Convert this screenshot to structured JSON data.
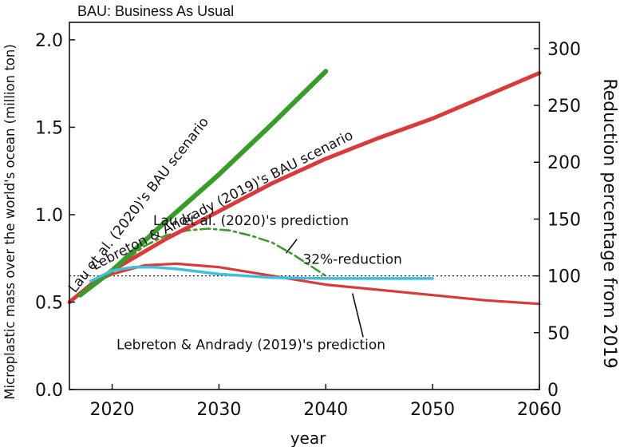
{
  "chart_data": {
    "type": "line",
    "note_text": "BAU: Business As Usual",
    "xlabel": "year",
    "ylabel": "Microplastic mass over the world's ocean (million ton)",
    "y2label": "Reduction percentage from 2019",
    "xlim": [
      2016,
      2060
    ],
    "ylim": [
      0,
      2.1
    ],
    "y2lim": [
      0,
      323.08
    ],
    "xticks": [
      2020,
      2030,
      2040,
      2050,
      2060
    ],
    "yticks": [
      0.0,
      0.5,
      1.0,
      1.5,
      2.0
    ],
    "y2ticks": [
      0,
      50,
      100,
      150,
      200,
      250,
      300
    ],
    "ytick_labels": [
      "0.0",
      "0.5",
      "1.0",
      "1.5",
      "2.0"
    ],
    "reference_line": {
      "y": 0.65,
      "label": "32%-reduction"
    },
    "series": [
      {
        "name": "Lau et al. (2020)'s BAU scenario",
        "color": "#3a9a2a",
        "x": [
          2017,
          2020,
          2025,
          2030,
          2035,
          2040
        ],
        "y": [
          0.54,
          0.68,
          0.96,
          1.23,
          1.52,
          1.82
        ]
      },
      {
        "name": "Lebreton & Andrady (2019)'s BAU scenario",
        "color": "#d93a3a",
        "x": [
          2016,
          2018,
          2020,
          2025,
          2030,
          2035,
          2040,
          2045,
          2050,
          2055,
          2060
        ],
        "y": [
          0.5,
          0.6,
          0.68,
          0.86,
          1.02,
          1.18,
          1.32,
          1.44,
          1.55,
          1.68,
          1.81
        ]
      },
      {
        "name": "Lau et al. (2020)'s prediction",
        "color": "#3a9a2a",
        "dash": "dashdot",
        "x": [
          2020,
          2023,
          2025,
          2027,
          2029,
          2031,
          2033,
          2035,
          2037,
          2040
        ],
        "y": [
          0.68,
          0.82,
          0.88,
          0.91,
          0.92,
          0.91,
          0.88,
          0.84,
          0.77,
          0.65
        ]
      },
      {
        "name": "Lebreton & Andrady (2019)'s prediction",
        "color": "#d93a3a",
        "x": [
          2016,
          2018,
          2020,
          2023,
          2026,
          2030,
          2035,
          2040,
          2045,
          2050,
          2055,
          2060
        ],
        "y": [
          0.5,
          0.6,
          0.66,
          0.71,
          0.72,
          0.7,
          0.65,
          0.6,
          0.57,
          0.54,
          0.51,
          0.49
        ]
      },
      {
        "name": "",
        "color": "#3fbfdc",
        "x": [
          2018,
          2020,
          2022,
          2024,
          2026,
          2030,
          2035,
          2040,
          2045,
          2050
        ],
        "y": [
          0.62,
          0.68,
          0.7,
          0.7,
          0.69,
          0.66,
          0.64,
          0.635,
          0.635,
          0.635
        ]
      }
    ],
    "annotations": [
      {
        "text": "Lau et al. (2020)'s BAU scenario",
        "at": [
          2022.8,
          1.04
        ],
        "rotate": -52
      },
      {
        "text": "Lebreton & Andrady (2019)'s BAU scenario",
        "at": [
          2030.5,
          1.06
        ],
        "rotate": -27
      },
      {
        "text": "Lau et al. (2020)'s prediction",
        "at": [
          2033,
          0.94
        ],
        "rotate": 0
      },
      {
        "text": "32%-reduction",
        "at": [
          2042.5,
          0.72
        ],
        "rotate": 0
      },
      {
        "text": "Lebreton & Andrady (2019)'s prediction",
        "at": [
          2033,
          0.23
        ],
        "rotate": 0
      }
    ],
    "pointers": [
      {
        "from": [
          2037.3,
          0.86
        ],
        "to": [
          2036.3,
          0.78
        ]
      },
      {
        "from": [
          2043.5,
          0.3
        ],
        "to": [
          2042.5,
          0.55
        ]
      }
    ],
    "grid": false,
    "legend": "none"
  }
}
